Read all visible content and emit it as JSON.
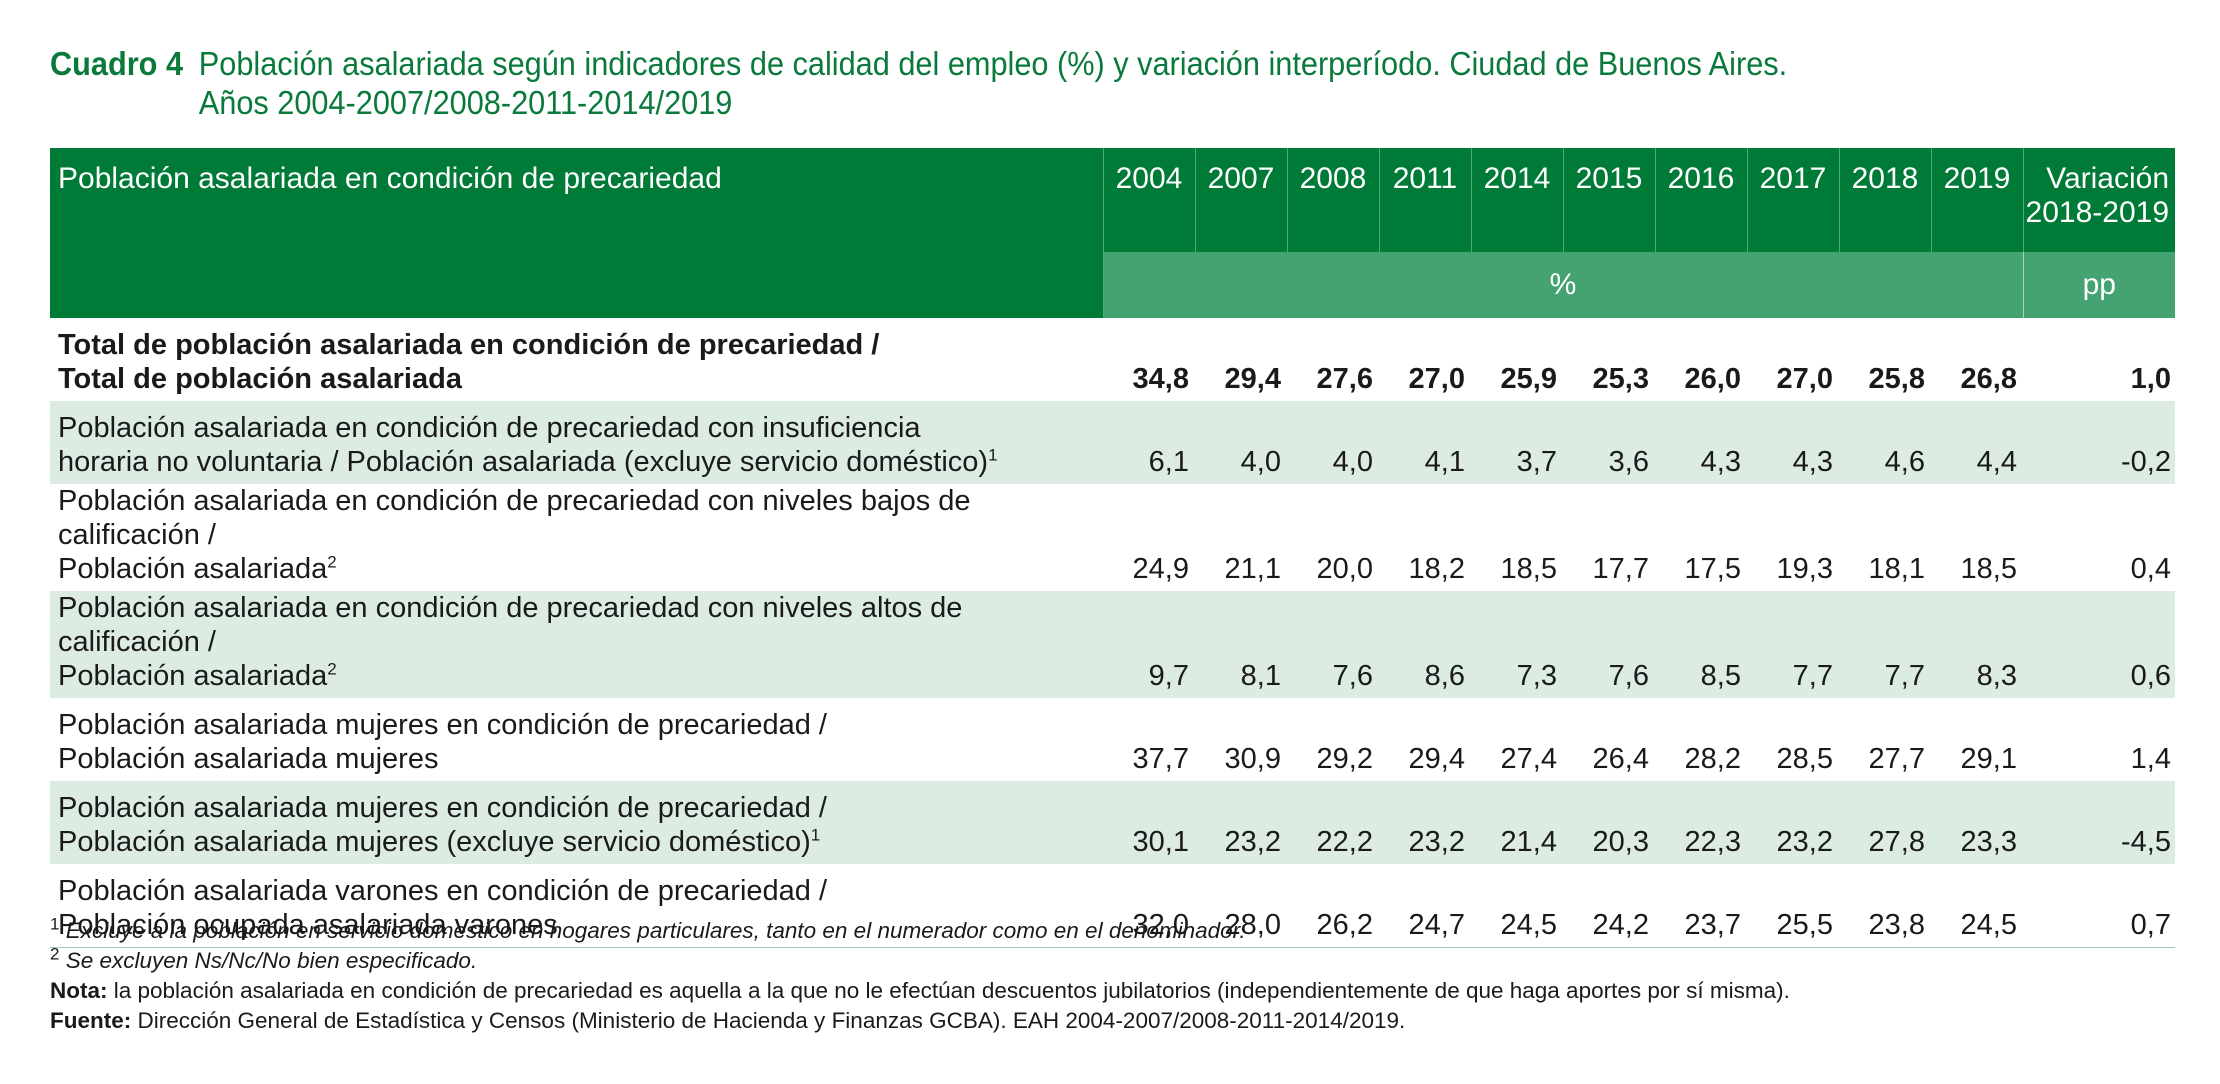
{
  "title": {
    "number": "Cuadro 4",
    "line1": "Población asalariada según indicadores de calidad del empleo (%) y variación interperíodo. Ciudad de Buenos Aires.",
    "line2": "Años 2004-2007/2008-2011-2014/2019"
  },
  "table": {
    "header_label": "Población asalariada en condición de precariedad",
    "years": [
      "2004",
      "2007",
      "2008",
      "2011",
      "2014",
      "2015",
      "2016",
      "2017",
      "2018",
      "2019"
    ],
    "variation_header_line1": "Variación",
    "variation_header_line2": "2018-2019",
    "unit_percent": "%",
    "unit_pp": "pp",
    "rows": [
      {
        "line1": "Total de población asalariada en condición de precariedad /",
        "line2": "Total de población asalariada",
        "sup": "",
        "values": [
          "34,8",
          "29,4",
          "27,6",
          "27,0",
          "25,9",
          "25,3",
          "26,0",
          "27,0",
          "25,8",
          "26,8"
        ],
        "variation": "1,0"
      },
      {
        "line1": "Población asalariada en condición de precariedad con insuficiencia",
        "line2": "horaria no voluntaria / Población asalariada (excluye servicio doméstico)",
        "sup": "1",
        "values": [
          "6,1",
          "4,0",
          "4,0",
          "4,1",
          "3,7",
          "3,6",
          "4,3",
          "4,3",
          "4,6",
          "4,4"
        ],
        "variation": "-0,2"
      },
      {
        "line1": "Población asalariada en condición de precariedad con niveles bajos de calificación /",
        "line2": "Población asalariada",
        "sup": "2",
        "values": [
          "24,9",
          "21,1",
          "20,0",
          "18,2",
          "18,5",
          "17,7",
          "17,5",
          "19,3",
          "18,1",
          "18,5"
        ],
        "variation": "0,4"
      },
      {
        "line1": "Población asalariada en condición de precariedad con niveles altos de calificación /",
        "line2": "Población asalariada",
        "sup": "2",
        "values": [
          "9,7",
          "8,1",
          "7,6",
          "8,6",
          "7,3",
          "7,6",
          "8,5",
          "7,7",
          "7,7",
          "8,3"
        ],
        "variation": "0,6"
      },
      {
        "line1": "Población asalariada mujeres en condición de precariedad /",
        "line2": "Población asalariada mujeres",
        "sup": "",
        "values": [
          "37,7",
          "30,9",
          "29,2",
          "29,4",
          "27,4",
          "26,4",
          "28,2",
          "28,5",
          "27,7",
          "29,1"
        ],
        "variation": "1,4"
      },
      {
        "line1": "Población asalariada mujeres en condición de precariedad /",
        "line2": "Población asalariada mujeres (excluye servicio doméstico)",
        "sup": "1",
        "values": [
          "30,1",
          "23,2",
          "22,2",
          "23,2",
          "21,4",
          "20,3",
          "22,3",
          "23,2",
          "27,8",
          "23,3"
        ],
        "variation": "-4,5"
      },
      {
        "line1": "Población asalariada varones en condición de precariedad /",
        "line2": "Población ocupada asalariada varones",
        "sup": "",
        "values": [
          "32,0",
          "28,0",
          "26,2",
          "24,7",
          "24,5",
          "24,2",
          "23,7",
          "25,5",
          "23,8",
          "24,5"
        ],
        "variation": "0,7"
      }
    ]
  },
  "footnotes": {
    "fn1_mark": "1",
    "fn1_text": "Excluye a la población en servicio domestico en hogares particulares, tanto en el numerador como en el denominador.",
    "fn2_mark": "2",
    "fn2_text": "Se excluyen Ns/Nc/No bien especificado.",
    "note_label": "Nota:",
    "note_text": " la población asalariada en condición de precariedad es aquella a la que no le efectúan descuentos jubilatorios (independientemente de que haga aportes por sí misma).",
    "source_label": "Fuente:",
    "source_text": " Dirección General de Estadística y Censos (Ministerio de Hacienda y Finanzas GCBA). EAH 2004-2007/2008-2011-2014/2019."
  },
  "colors": {
    "header_dark_green": "#007a37",
    "header_light_green": "#45a372",
    "row_shade": "#dcece3",
    "title_green": "#0a7a3c"
  }
}
